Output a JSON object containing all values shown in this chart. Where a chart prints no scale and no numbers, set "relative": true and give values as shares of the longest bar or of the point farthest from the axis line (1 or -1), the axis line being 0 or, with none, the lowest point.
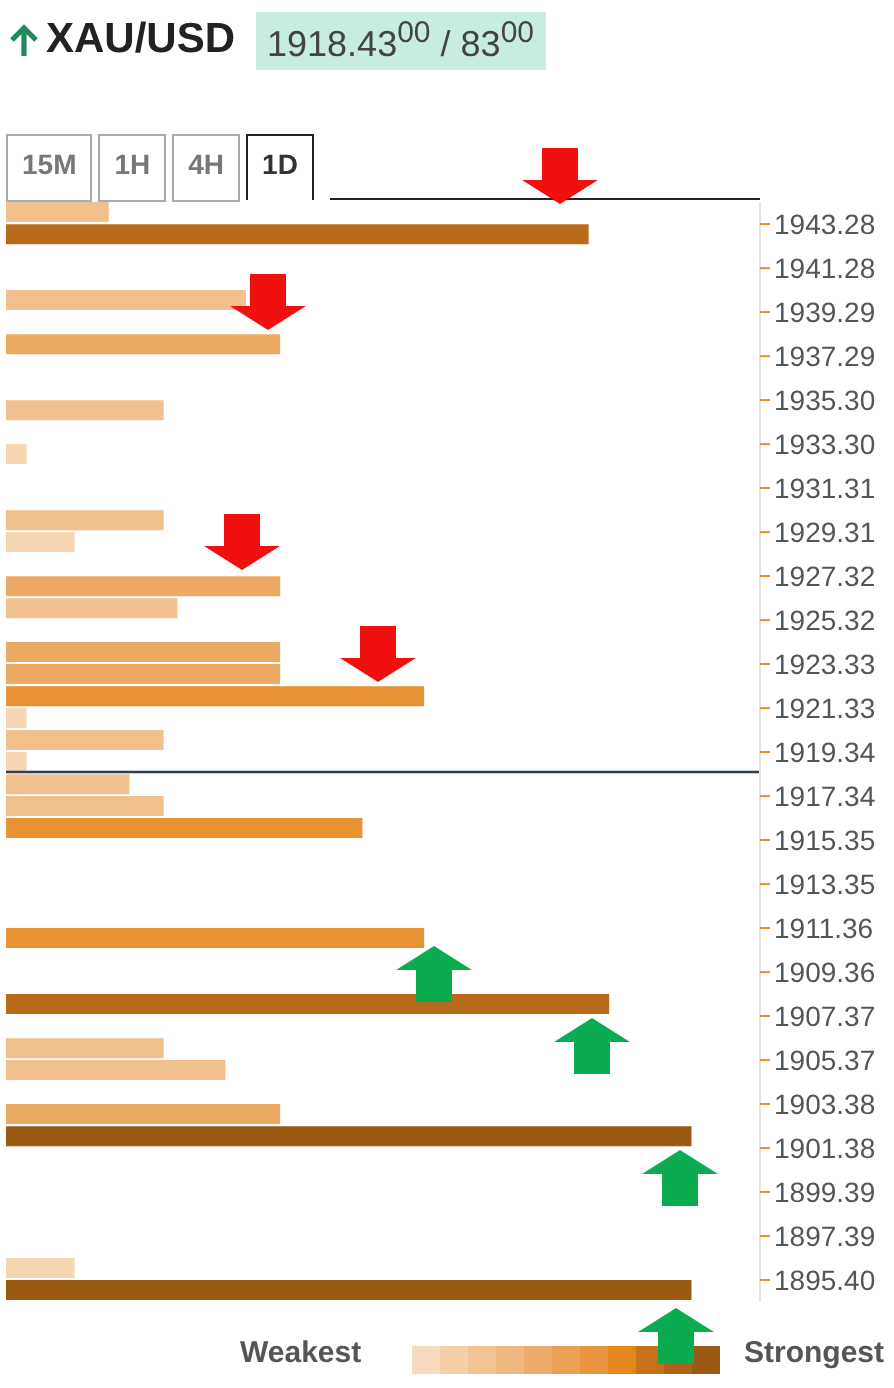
{
  "chart_data": {
    "type": "bar",
    "orientation": "horizontal",
    "relative": true,
    "title": "XAU/USD",
    "subtitle": "1918.43$^{00}$ / 83$^{00}$",
    "x": [
      1943.78,
      1942.78,
      1939.79,
      1937.79,
      1934.8,
      1932.81,
      1929.81,
      1928.82,
      1926.82,
      1925.82,
      1923.83,
      1922.83,
      1921.83,
      1920.84,
      1919.84,
      1918.84,
      1917.84,
      1916.85,
      1915.85,
      1910.86,
      1907.87,
      1905.87,
      1904.88,
      1902.88,
      1901.88,
      1895.9,
      1894.9
    ],
    "values": [
      0.15,
      0.85,
      0.35,
      0.4,
      0.23,
      0.03,
      0.23,
      0.1,
      0.4,
      0.25,
      0.4,
      0.4,
      0.61,
      0.03,
      0.23,
      0.03,
      0.18,
      0.23,
      0.52,
      0.61,
      0.88,
      0.23,
      0.32,
      0.4,
      1,
      0.1,
      1
    ],
    "colors": [
      "#f0c18e",
      "#b86b1a",
      "#f0c18e",
      "#edaa62",
      "#f0c18e",
      "#f6d5b3",
      "#f0c18e",
      "#f6d5b3",
      "#edaa62",
      "#f0c18e",
      "#edaa62",
      "#edaa62",
      "#e89234",
      "#f6d5b3",
      "#f0c18e",
      "#f6d5b3",
      "#f0c18e",
      "#f0c18e",
      "#e89234",
      "#e89234",
      "#b86b1a",
      "#f0c18e",
      "#f0c18e",
      "#edaa62",
      "#9b5a14",
      "#f6d5b3",
      "#9b5a14"
    ],
    "ylim": [
      1894.4,
      1944.28
    ],
    "yticks": [
      1943.28,
      1941.28,
      1939.29,
      1937.29,
      {
        "value": 1935.3,
        "label": "1935.30"
      },
      {
        "value": 1933.3,
        "label": "1933.30"
      },
      1931.31,
      1929.31,
      1927.32,
      1925.32,
      1923.33,
      1921.33,
      1919.34,
      1917.34,
      1915.35,
      1913.35,
      1911.36,
      1909.36,
      1907.37,
      1905.37,
      1903.38,
      1901.38,
      1899.39,
      1897.39,
      {
        "value": 1895.4,
        "label": "1895.40"
      }
    ],
    "ref_lines": [
      {
        "axis": "y",
        "value": 1918.43,
        "color": "#2d3e50"
      }
    ],
    "annotations": [
      "15M",
      "1H",
      "4H",
      "1D",
      "Weakest",
      "Strongest"
    ]
  }
}
